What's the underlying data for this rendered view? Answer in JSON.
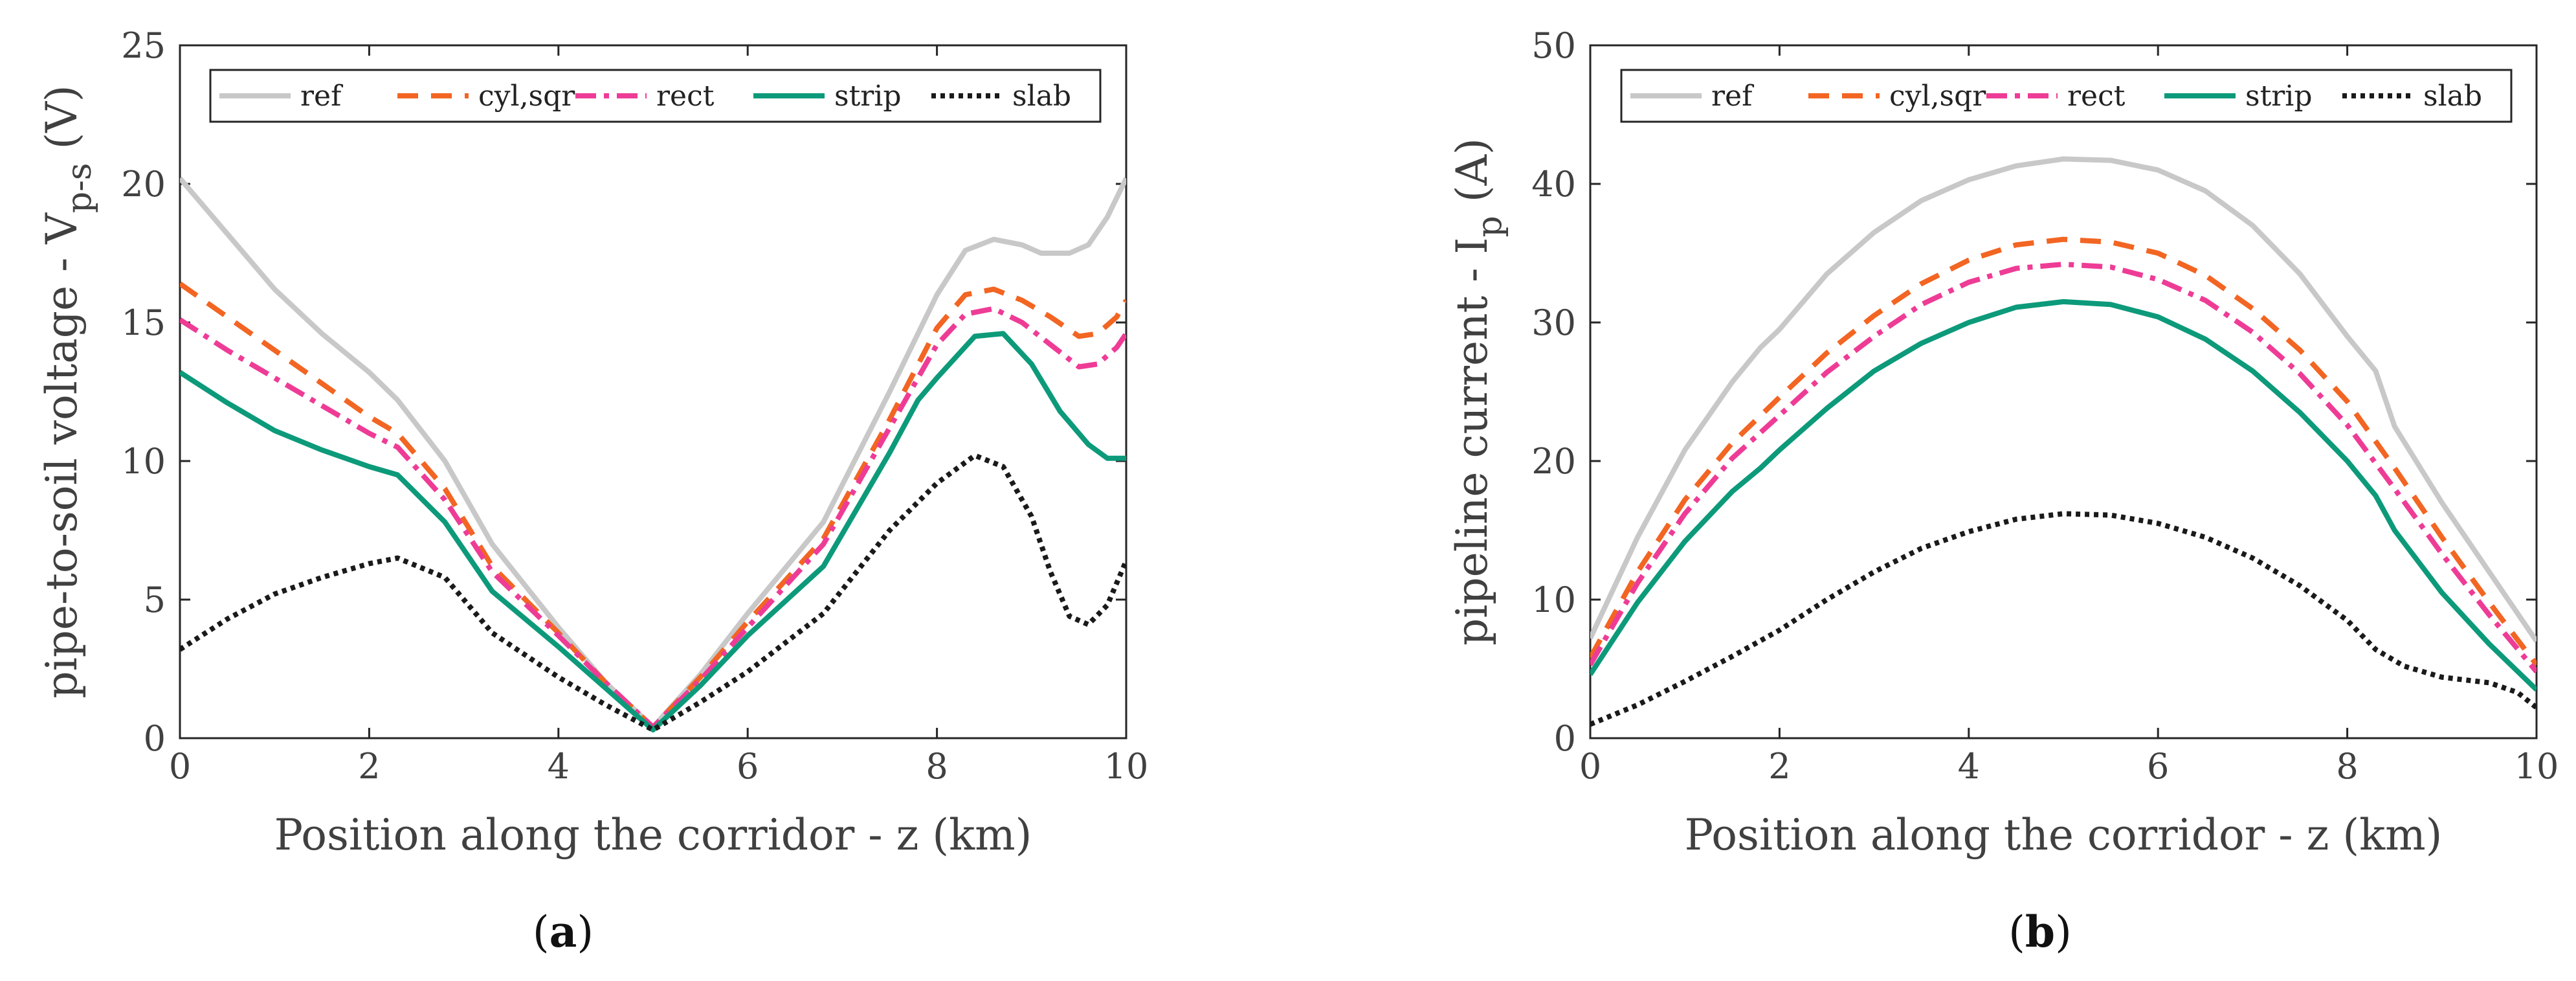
{
  "figure": {
    "panel_labels": [
      "a",
      "b"
    ]
  },
  "series_styles": [
    {
      "name": "ref",
      "color": "#c8c8c8",
      "dash": ""
    },
    {
      "name": "cyl,sqr",
      "color": "#f26522",
      "dash": "32 20"
    },
    {
      "name": "rect",
      "color": "#ee3c96",
      "dash": "32 12 8 12"
    },
    {
      "name": "strip",
      "color": "#0c9a7a",
      "dash": ""
    },
    {
      "name": "slab",
      "color": "#1a1a1a",
      "dash": "7 7"
    }
  ],
  "chart_data": [
    {
      "type": "line",
      "panel": "a",
      "xlabel": "Position along the corridor - z (km)",
      "ylabel": "pipe-to-soil voltage - V",
      "ylabel_sub": "p-s",
      "ylabel_unit": " (V)",
      "xlim": [
        0,
        10
      ],
      "ylim": [
        0,
        25
      ],
      "xticks": [
        0,
        2,
        4,
        6,
        8,
        10
      ],
      "yticks": [
        0,
        5,
        10,
        15,
        20,
        25
      ],
      "legend": [
        "ref",
        "cyl,sqr",
        "rect",
        "strip",
        "slab"
      ],
      "legend_position": "top",
      "series": [
        {
          "name": "ref",
          "x": [
            0,
            0.5,
            1,
            1.5,
            2,
            2.3,
            2.8,
            3.3,
            4,
            4.5,
            5,
            5.5,
            6,
            6.8,
            7.5,
            8,
            8.3,
            8.6,
            8.9,
            9.1,
            9.4,
            9.6,
            9.8,
            10
          ],
          "y": [
            20.2,
            18.2,
            16.2,
            14.6,
            13.2,
            12.2,
            10,
            7,
            4,
            2,
            0.4,
            2.3,
            4.5,
            7.8,
            12.5,
            16,
            17.6,
            18,
            17.8,
            17.5,
            17.5,
            17.8,
            18.8,
            20.2
          ]
        },
        {
          "name": "cyl,sqr",
          "x": [
            0,
            0.5,
            1,
            1.5,
            2,
            2.3,
            2.8,
            3.3,
            4,
            4.5,
            5,
            5.5,
            6,
            6.8,
            7.5,
            8,
            8.3,
            8.6,
            8.9,
            9.2,
            9.5,
            9.7,
            9.9,
            10
          ],
          "y": [
            16.4,
            15.2,
            14,
            12.8,
            11.6,
            11,
            9,
            6.2,
            3.8,
            2,
            0.4,
            2.2,
            4.2,
            7.2,
            11.5,
            14.8,
            16,
            16.2,
            15.8,
            15.2,
            14.5,
            14.6,
            15.2,
            15.8
          ]
        },
        {
          "name": "rect",
          "x": [
            0,
            0.5,
            1,
            1.5,
            2,
            2.3,
            2.8,
            3.3,
            4,
            4.5,
            5,
            5.5,
            6,
            6.8,
            7.5,
            8,
            8.3,
            8.6,
            8.9,
            9.2,
            9.5,
            9.7,
            9.9,
            10
          ],
          "y": [
            15.1,
            14,
            13,
            12,
            11,
            10.5,
            8.6,
            6,
            3.7,
            2,
            0.4,
            2.1,
            4,
            7,
            11.2,
            14.2,
            15.3,
            15.5,
            15,
            14.2,
            13.4,
            13.5,
            14.1,
            14.6
          ]
        },
        {
          "name": "strip",
          "x": [
            0,
            0.5,
            1,
            1.5,
            2,
            2.3,
            2.8,
            3.3,
            4,
            4.5,
            5,
            5.5,
            6,
            6.8,
            7.5,
            7.8,
            8,
            8.4,
            8.7,
            9,
            9.3,
            9.6,
            9.8,
            10
          ],
          "y": [
            13.2,
            12.1,
            11.1,
            10.4,
            9.8,
            9.5,
            7.8,
            5.3,
            3.3,
            1.8,
            0.3,
            1.9,
            3.7,
            6.2,
            10.3,
            12.2,
            13,
            14.5,
            14.6,
            13.5,
            11.8,
            10.6,
            10.1,
            10.1
          ]
        },
        {
          "name": "slab",
          "x": [
            0,
            0.5,
            1,
            1.5,
            2,
            2.3,
            2.8,
            3.3,
            4,
            4.5,
            5,
            5.5,
            6,
            6.8,
            7.5,
            8,
            8.4,
            8.7,
            9,
            9.2,
            9.4,
            9.6,
            9.8,
            10
          ],
          "y": [
            3.2,
            4.3,
            5.2,
            5.8,
            6.3,
            6.5,
            5.8,
            3.8,
            2.2,
            1.2,
            0.3,
            1.3,
            2.4,
            4.5,
            7.5,
            9.2,
            10.2,
            9.8,
            8,
            6,
            4.4,
            4.1,
            4.8,
            6.4
          ]
        }
      ]
    },
    {
      "type": "line",
      "panel": "b",
      "xlabel": "Position along the corridor - z (km)",
      "ylabel": "pipeline current - I",
      "ylabel_sub": "p",
      "ylabel_unit": " (A)",
      "xlim": [
        0,
        10
      ],
      "ylim": [
        0,
        50
      ],
      "xticks": [
        0,
        2,
        4,
        6,
        8,
        10
      ],
      "yticks": [
        0,
        10,
        20,
        30,
        40,
        50
      ],
      "legend": [
        "ref",
        "cyl,sqr",
        "rect",
        "strip",
        "slab"
      ],
      "legend_position": "top",
      "series": [
        {
          "name": "ref",
          "x": [
            0,
            0.5,
            1,
            1.5,
            1.8,
            2,
            2.5,
            3,
            3.5,
            4,
            4.5,
            5,
            5.5,
            6,
            6.5,
            7,
            7.5,
            8,
            8.3,
            8.5,
            9,
            9.5,
            10
          ],
          "y": [
            7.2,
            14.5,
            20.8,
            25.7,
            28.2,
            29.5,
            33.5,
            36.5,
            38.8,
            40.3,
            41.3,
            41.8,
            41.7,
            41,
            39.5,
            37,
            33.5,
            29,
            26.5,
            22.5,
            17,
            12,
            7
          ]
        },
        {
          "name": "cyl,sqr",
          "x": [
            0,
            0.5,
            1,
            1.5,
            2,
            2.5,
            3,
            3.5,
            4,
            4.5,
            5,
            5.5,
            6,
            6.5,
            7,
            7.5,
            8,
            8.5,
            9,
            9.5,
            10
          ],
          "y": [
            5.8,
            12,
            17.2,
            21.3,
            24.6,
            27.8,
            30.5,
            32.8,
            34.5,
            35.6,
            36,
            35.8,
            35,
            33.4,
            31,
            28,
            24.3,
            19.5,
            14.5,
            9.8,
            5.3
          ]
        },
        {
          "name": "rect",
          "x": [
            0,
            0.5,
            1,
            1.5,
            2,
            2.5,
            3,
            3.5,
            4,
            4.5,
            5,
            5.5,
            6,
            6.5,
            7,
            7.5,
            8,
            8.5,
            9,
            9.5,
            10
          ],
          "y": [
            5.3,
            11.2,
            16.2,
            20.2,
            23.3,
            26.4,
            29,
            31.3,
            32.9,
            33.9,
            34.2,
            34,
            33.1,
            31.6,
            29.3,
            26.3,
            22.6,
            18,
            13.3,
            8.9,
            4.8
          ]
        },
        {
          "name": "strip",
          "x": [
            0,
            0.5,
            1,
            1.5,
            1.8,
            2,
            2.5,
            3,
            3.5,
            4,
            4.5,
            5,
            5.5,
            6,
            6.5,
            7,
            7.5,
            8,
            8.3,
            8.5,
            9,
            9.5,
            10
          ],
          "y": [
            4.6,
            9.8,
            14.2,
            17.8,
            19.5,
            20.8,
            23.8,
            26.5,
            28.5,
            30,
            31.1,
            31.5,
            31.3,
            30.4,
            28.8,
            26.5,
            23.5,
            20,
            17.5,
            15,
            10.5,
            6.8,
            3.5
          ]
        },
        {
          "name": "slab",
          "x": [
            0,
            0.5,
            1,
            1.5,
            2,
            2.5,
            3,
            3.5,
            4,
            4.5,
            5,
            5.5,
            6,
            6.5,
            7,
            7.5,
            8,
            8.3,
            8.6,
            9,
            9.5,
            9.8,
            10
          ],
          "y": [
            1,
            2.4,
            4.1,
            5.9,
            7.8,
            10,
            12,
            13.7,
            14.9,
            15.8,
            16.2,
            16.1,
            15.5,
            14.5,
            13,
            11,
            8.5,
            6.4,
            5.2,
            4.4,
            4,
            3.3,
            2.2
          ]
        }
      ]
    }
  ]
}
